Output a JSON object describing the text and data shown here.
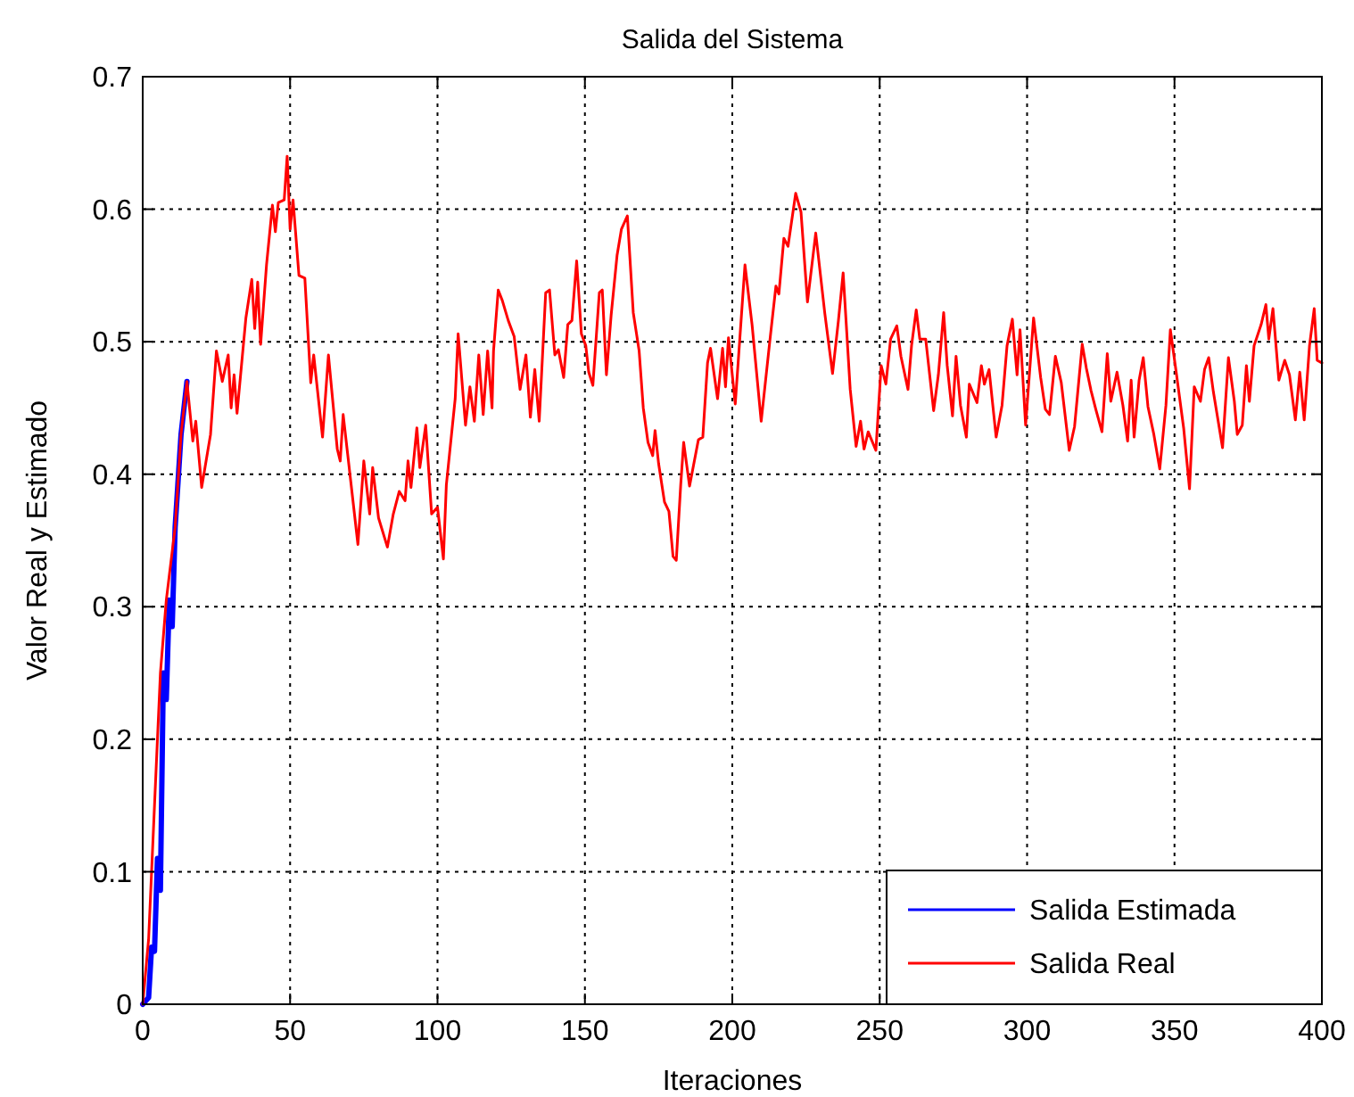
{
  "chart_data": {
    "type": "line",
    "title": "Salida del Sistema",
    "xlabel": "Iteraciones",
    "ylabel": "Valor Real y Estimado",
    "xlim": [
      0,
      400
    ],
    "xticks": [
      0,
      50,
      100,
      150,
      200,
      250,
      300,
      350,
      400
    ],
    "ylim": [
      0,
      0.7
    ],
    "yticks": [
      0,
      0.1,
      0.2,
      0.3,
      0.4,
      0.5,
      0.6,
      0.7
    ],
    "grid": true,
    "legend": "bottom right",
    "line_style": "solid",
    "marker": "none",
    "series": [
      {
        "name": "Salida Estimada",
        "color": "#0000ff",
        "x": [
          0,
          2,
          3,
          4,
          5,
          6,
          7,
          8,
          9,
          10,
          11,
          13,
          15
        ],
        "values": [
          0,
          0.005,
          0.043,
          0.04,
          0.11,
          0.086,
          0.25,
          0.23,
          0.305,
          0.285,
          0.36,
          0.43,
          0.47
        ]
      },
      {
        "name": "Salida Real",
        "color": "#ff0000",
        "x": [
          0,
          2,
          4,
          6,
          8,
          11,
          13,
          15,
          17,
          18,
          20,
          23,
          25,
          27,
          29,
          30,
          31,
          32,
          35,
          37,
          38,
          39,
          40,
          42,
          44,
          45,
          46,
          48,
          49,
          50,
          51,
          53,
          55,
          57,
          58,
          61,
          63,
          66,
          67,
          68,
          73,
          75,
          77,
          78,
          80,
          83,
          85,
          87,
          89,
          90,
          91,
          93,
          94,
          96,
          98,
          100,
          102,
          103,
          106,
          107,
          109.5,
          111,
          112.5,
          114,
          115.5,
          117,
          118.5,
          119,
          120.6,
          122,
          124,
          126,
          128,
          130,
          131.5,
          133,
          134.5,
          136.7,
          138,
          139.8,
          141,
          142.8,
          144.2,
          145.6,
          147.2,
          148.8,
          150.3,
          151.3,
          152.7,
          154.9,
          155.9,
          157.3,
          158.9,
          160.9,
          162.4,
          164.4,
          166.4,
          168.4,
          169.8,
          171.4,
          173,
          173.8,
          175,
          177,
          178.5,
          179.9,
          181,
          182.5,
          183.5,
          185.5,
          188.5,
          190,
          191.6,
          192.6,
          195,
          196.7,
          197.7,
          198.7,
          201,
          204.3,
          206.7,
          209.8,
          212.8,
          214.8,
          215.8,
          217.5,
          218.9,
          221.5,
          223.3,
          225.5,
          228.3,
          231.4,
          234,
          236,
          237.6,
          240,
          242,
          243.5,
          244.7,
          246.1,
          248.7,
          250.5,
          252.1,
          253.7,
          255.8,
          257.2,
          259.6,
          260.8,
          262.4,
          263.6,
          265.6,
          267.3,
          268.3,
          269.9,
          271.7,
          272.9,
          274.7,
          275.9,
          277.4,
          279.4,
          280.4,
          283,
          284.5,
          285.5,
          287.1,
          289.5,
          291.5,
          293.2,
          295,
          296.6,
          297.6,
          299.5,
          302.2,
          304.6,
          306.2,
          307.6,
          309.6,
          311.6,
          314.3,
          316.1,
          318.7,
          320.1,
          321.7,
          323.3,
          325.4,
          327.2,
          328.4,
          330.5,
          332.5,
          334.1,
          335.3,
          336.3,
          338,
          339.4,
          341,
          343,
          345,
          347.1,
          348.6,
          350.7,
          353.1,
          355.1,
          356.7,
          358.8,
          360.2,
          361.6,
          363.2,
          366.3,
          368.3,
          370.3,
          371.3,
          373,
          374.4,
          375.4,
          377,
          379.4,
          381,
          382,
          383.4,
          385.4,
          387.4,
          389,
          391,
          392.5,
          394,
          395.8,
          397.4,
          398.4,
          400
        ],
        "values": [
          0,
          0.049,
          0.15,
          0.25,
          0.305,
          0.36,
          0.43,
          0.47,
          0.425,
          0.44,
          0.39,
          0.43,
          0.493,
          0.47,
          0.49,
          0.45,
          0.475,
          0.446,
          0.518,
          0.547,
          0.51,
          0.545,
          0.498,
          0.558,
          0.603,
          0.583,
          0.605,
          0.607,
          0.64,
          0.585,
          0.607,
          0.55,
          0.548,
          0.469,
          0.49,
          0.428,
          0.49,
          0.419,
          0.41,
          0.445,
          0.347,
          0.41,
          0.37,
          0.405,
          0.367,
          0.345,
          0.37,
          0.387,
          0.38,
          0.41,
          0.39,
          0.435,
          0.405,
          0.437,
          0.37,
          0.375,
          0.336,
          0.392,
          0.457,
          0.506,
          0.437,
          0.466,
          0.44,
          0.49,
          0.445,
          0.493,
          0.45,
          0.493,
          0.539,
          0.531,
          0.516,
          0.504,
          0.464,
          0.49,
          0.443,
          0.479,
          0.44,
          0.537,
          0.539,
          0.49,
          0.494,
          0.473,
          0.513,
          0.516,
          0.561,
          0.506,
          0.497,
          0.477,
          0.467,
          0.537,
          0.539,
          0.475,
          0.52,
          0.565,
          0.585,
          0.595,
          0.522,
          0.493,
          0.45,
          0.424,
          0.414,
          0.433,
          0.408,
          0.379,
          0.372,
          0.338,
          0.335,
          0.392,
          0.424,
          0.391,
          0.426,
          0.428,
          0.484,
          0.495,
          0.457,
          0.495,
          0.466,
          0.503,
          0.453,
          0.558,
          0.513,
          0.44,
          0.502,
          0.542,
          0.536,
          0.578,
          0.572,
          0.612,
          0.598,
          0.53,
          0.582,
          0.521,
          0.476,
          0.516,
          0.552,
          0.464,
          0.421,
          0.44,
          0.419,
          0.432,
          0.418,
          0.482,
          0.468,
          0.502,
          0.512,
          0.489,
          0.464,
          0.497,
          0.524,
          0.502,
          0.502,
          0.468,
          0.448,
          0.475,
          0.522,
          0.482,
          0.444,
          0.489,
          0.452,
          0.428,
          0.468,
          0.454,
          0.482,
          0.468,
          0.479,
          0.428,
          0.452,
          0.497,
          0.517,
          0.475,
          0.509,
          0.437,
          0.518,
          0.473,
          0.449,
          0.445,
          0.489,
          0.469,
          0.418,
          0.436,
          0.498,
          0.48,
          0.463,
          0.449,
          0.432,
          0.491,
          0.455,
          0.477,
          0.452,
          0.425,
          0.471,
          0.428,
          0.471,
          0.488,
          0.451,
          0.43,
          0.404,
          0.452,
          0.509,
          0.475,
          0.435,
          0.389,
          0.466,
          0.455,
          0.479,
          0.488,
          0.462,
          0.42,
          0.488,
          0.455,
          0.43,
          0.437,
          0.482,
          0.455,
          0.497,
          0.513,
          0.528,
          0.502,
          0.525,
          0.471,
          0.486,
          0.475,
          0.441,
          0.477,
          0.441,
          0.497,
          0.525,
          0.486,
          0.484
        ]
      }
    ]
  }
}
